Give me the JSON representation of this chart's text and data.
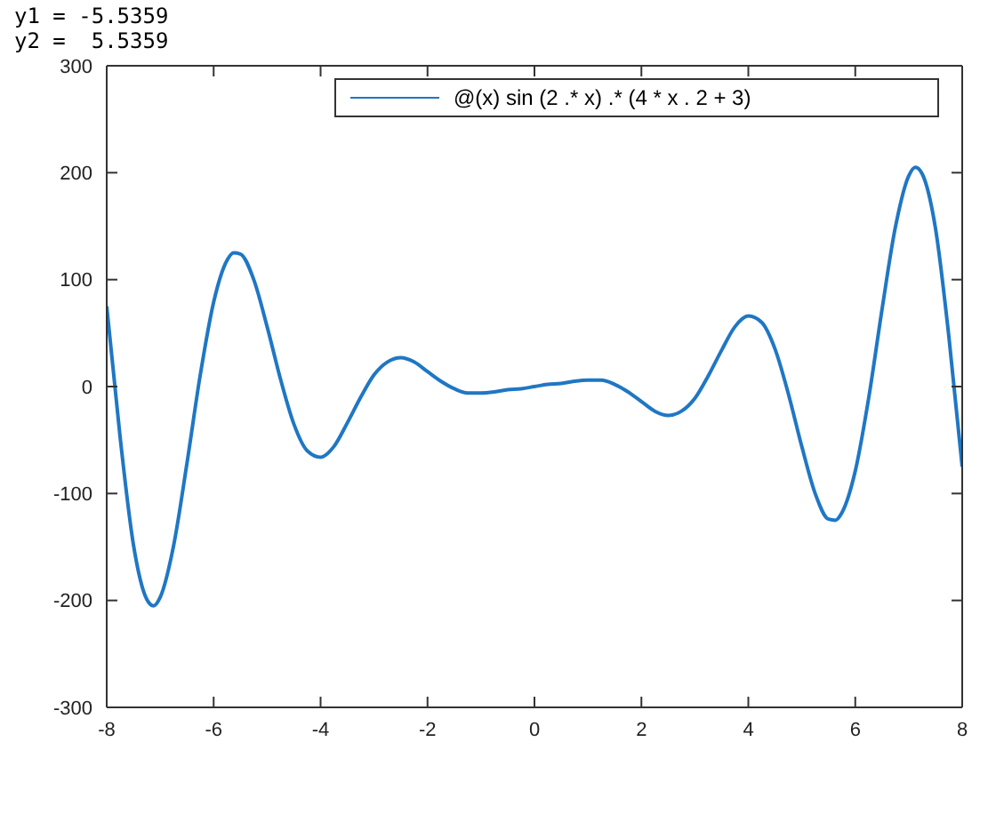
{
  "chart_data": {
    "type": "line",
    "annotations": [
      "y1 = -5.5359",
      "y2 =  5.5359"
    ],
    "x": [
      -8,
      -7.75,
      -7.5,
      -7.25,
      -7.125,
      -7,
      -6.75,
      -6.5,
      -6.25,
      -6,
      -5.75,
      -5.625,
      -5.5,
      -5.25,
      -5,
      -4.75,
      -4.5,
      -4.25,
      -4,
      -3.75,
      -3.5,
      -3.25,
      -3,
      -2.75,
      -2.5,
      -2.25,
      -2,
      -1.75,
      -1.5,
      -1.25,
      -1,
      -0.75,
      -0.5,
      -0.25,
      0,
      0.25,
      0.5,
      0.75,
      1,
      1.25,
      1.5,
      1.75,
      2,
      2.25,
      2.5,
      2.75,
      3,
      3.25,
      3.5,
      3.75,
      4,
      4.25,
      4.5,
      4.75,
      5,
      5.25,
      5.5,
      5.625,
      5.75,
      6,
      6.25,
      6.5,
      6.75,
      7,
      7.125,
      7.25,
      7.5,
      7.75,
      8
    ],
    "series": [
      {
        "name": "@(x) sin (2 .* x) .* (4 * x . 2 + 3)",
        "color": "#1f77c4",
        "values": [
          75,
          -47,
          -148,
          -199,
          -205,
          -197,
          -149,
          -72,
          11,
          79,
          118,
          125,
          124,
          100,
          56,
          7,
          -35,
          -60,
          -66,
          -56,
          -34,
          -10,
          11,
          23,
          27,
          23,
          14,
          5,
          -2,
          -6,
          -6,
          -5,
          -3,
          -2,
          0,
          2,
          3,
          5,
          6,
          6,
          2,
          -5,
          -14,
          -23,
          -27,
          -23,
          -11,
          10,
          34,
          56,
          66,
          60,
          35,
          -7,
          -56,
          -100,
          -124,
          -125,
          -118,
          -79,
          -11,
          72,
          149,
          197,
          205,
          199,
          148,
          47,
          -75
        ]
      }
    ],
    "xlim": [
      -8,
      8
    ],
    "xticks": [
      -8,
      -6,
      -4,
      -2,
      0,
      2,
      4,
      6,
      8
    ],
    "ylim": [
      -300,
      300
    ],
    "yticks": [
      -300,
      -200,
      -100,
      0,
      100,
      200,
      300
    ],
    "grid": false,
    "legend": "top right",
    "marker": "none",
    "line_style": "solid"
  }
}
